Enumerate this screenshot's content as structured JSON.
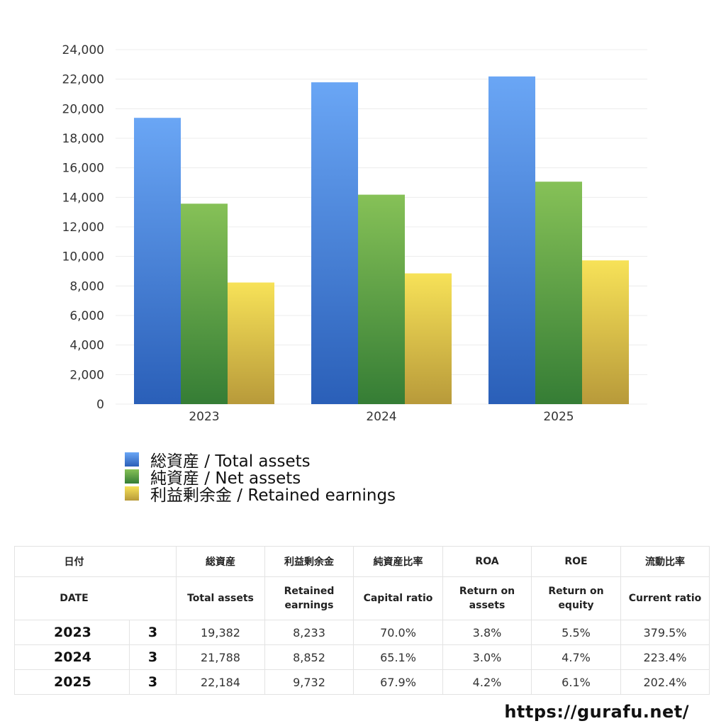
{
  "chart_data": {
    "type": "bar",
    "categories": [
      "2023",
      "2024",
      "2025"
    ],
    "series": [
      {
        "name": "総資産 / Total assets",
        "values": [
          19382,
          21788,
          22184
        ],
        "color_top": "#6aa6f5",
        "color_bottom": "#2a5fb8"
      },
      {
        "name": "純資産 / Net assets",
        "values": [
          13570,
          14180,
          15060
        ],
        "color_top": "#86c157",
        "color_bottom": "#357d35"
      },
      {
        "name": "利益剰余金 / Retained earnings",
        "values": [
          8233,
          8852,
          9732
        ],
        "color_top": "#f7e258",
        "color_bottom": "#b89a3a"
      }
    ],
    "ylim": [
      0,
      24000
    ],
    "yticks": [
      "0",
      "2,000",
      "4,000",
      "6,000",
      "8,000",
      "10,000",
      "12,000",
      "14,000",
      "16,000",
      "18,000",
      "20,000",
      "22,000",
      "24,000"
    ],
    "grid": true,
    "legend_position": "bottom-left"
  },
  "table": {
    "headers_jp": [
      "日付",
      "総資産",
      "利益剰余金",
      "純資産比率",
      "ROA",
      "ROE",
      "流動比率"
    ],
    "headers_en": [
      "DATE",
      "Total assets",
      "Retained earnings",
      "Capital ratio",
      "Return on assets",
      "Return on equity",
      "Current ratio"
    ],
    "rows": [
      {
        "year": "2023",
        "month": "3",
        "total_assets": "19,382",
        "retained_earnings": "8,233",
        "capital_ratio": "70.0%",
        "roa": "3.8%",
        "roe": "5.5%",
        "current_ratio": "379.5%"
      },
      {
        "year": "2024",
        "month": "3",
        "total_assets": "21,788",
        "retained_earnings": "8,852",
        "capital_ratio": "65.1%",
        "roa": "3.0%",
        "roe": "4.7%",
        "current_ratio": "223.4%"
      },
      {
        "year": "2025",
        "month": "3",
        "total_assets": "22,184",
        "retained_earnings": "9,732",
        "capital_ratio": "67.9%",
        "roa": "4.2%",
        "roe": "6.1%",
        "current_ratio": "202.4%"
      }
    ]
  },
  "site_url": "https://gurafu.net/"
}
